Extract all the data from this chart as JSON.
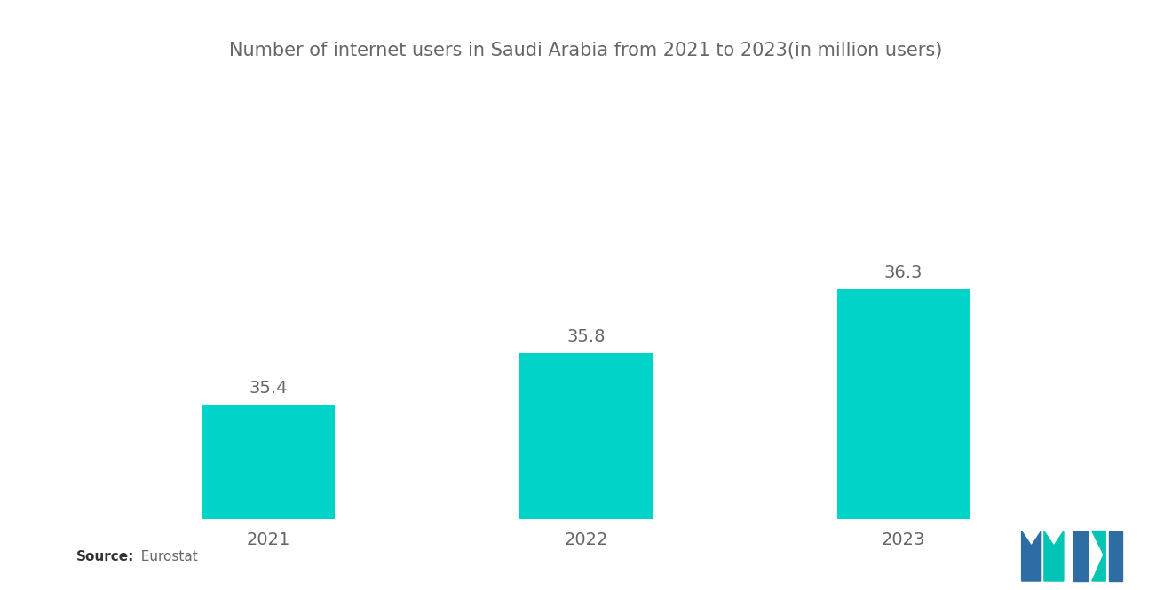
{
  "title": "Number of internet users in Saudi Arabia from 2021 to 2023(in million users)",
  "categories": [
    "2021",
    "2022",
    "2023"
  ],
  "values": [
    35.4,
    35.8,
    36.3
  ],
  "bar_color": "#00D4C8",
  "background_color": "#ffffff",
  "title_fontsize": 15,
  "tick_fontsize": 14,
  "value_fontsize": 14,
  "source_bold": "Source:",
  "source_rest": "  Eurostat",
  "ylim_min": 34.5,
  "ylim_max": 37.5,
  "bar_width": 0.42,
  "title_color": "#666666",
  "tick_color": "#666666",
  "value_color": "#666666",
  "logo_blue": "#2E6DA4",
  "logo_teal": "#00C4B4"
}
